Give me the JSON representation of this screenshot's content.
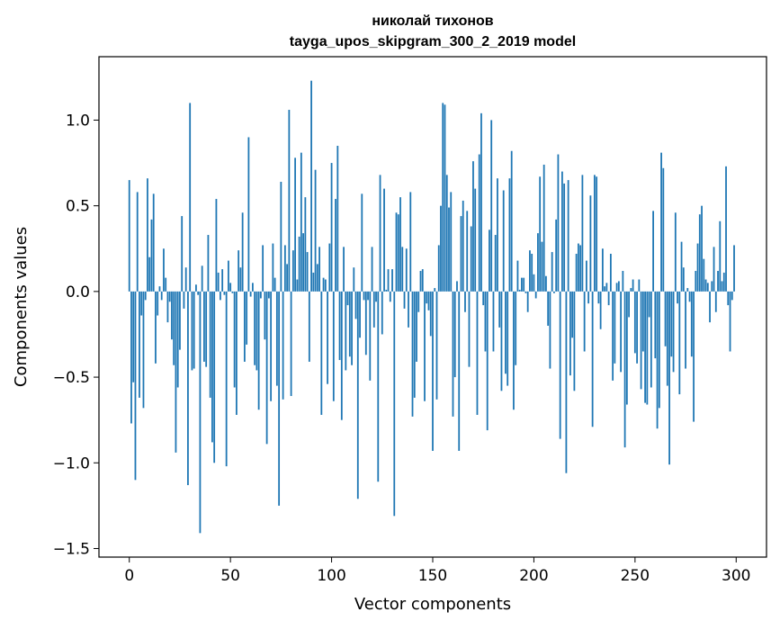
{
  "chart_data": {
    "type": "bar",
    "title": "николай тихонов",
    "subtitle": "tayga_upos_skipgram_300_2_2019 model",
    "xlabel": "Vector components",
    "ylabel": "Components values",
    "xlim": [
      -15,
      315
    ],
    "ylim": [
      -1.55,
      1.37
    ],
    "xticks": [
      0,
      50,
      100,
      150,
      200,
      250,
      300
    ],
    "xtick_labels": [
      "0",
      "50",
      "100",
      "150",
      "200",
      "250",
      "300"
    ],
    "yticks": [
      -1.5,
      -1.0,
      -0.5,
      0.0,
      0.5,
      1.0
    ],
    "ytick_labels": [
      "−1.5",
      "−1.0",
      "−0.5",
      "0.0",
      "0.5",
      "1.0"
    ],
    "grid": false,
    "color": "#1f77b4",
    "values": [
      0.65,
      -0.77,
      -0.53,
      -1.1,
      0.58,
      -0.62,
      -0.14,
      -0.68,
      -0.05,
      0.66,
      0.2,
      0.42,
      0.57,
      -0.42,
      -0.14,
      0.03,
      -0.05,
      0.25,
      0.08,
      -0.18,
      -0.06,
      -0.28,
      -0.43,
      -0.94,
      -0.56,
      -0.34,
      0.44,
      -0.1,
      0.14,
      -1.13,
      1.1,
      -0.46,
      -0.45,
      0.04,
      -0.02,
      -1.41,
      0.15,
      -0.41,
      -0.44,
      0.33,
      -0.62,
      -0.88,
      -1.0,
      0.54,
      0.11,
      -0.05,
      0.13,
      -0.02,
      -1.02,
      0.18,
      0.05,
      -0.01,
      -0.56,
      -0.72,
      0.24,
      0.14,
      0.46,
      -0.41,
      -0.31,
      0.9,
      -0.03,
      0.05,
      -0.43,
      -0.46,
      -0.69,
      -0.04,
      0.27,
      -0.28,
      -0.89,
      -0.04,
      -0.64,
      0.28,
      0.08,
      -0.55,
      -1.25,
      0.64,
      -0.63,
      0.27,
      0.16,
      1.06,
      -0.61,
      0.24,
      0.78,
      0.07,
      0.32,
      0.81,
      0.34,
      0.55,
      0.23,
      -0.41,
      1.23,
      0.11,
      0.71,
      0.16,
      0.26,
      -0.72,
      0.08,
      0.07,
      -0.54,
      0.28,
      0.75,
      -0.64,
      0.54,
      0.85,
      -0.4,
      -0.75,
      0.26,
      -0.46,
      -0.08,
      -0.38,
      -0.43,
      0.14,
      -0.16,
      -1.21,
      -0.27,
      0.57,
      -0.05,
      -0.37,
      -0.05,
      -0.52,
      0.26,
      -0.21,
      -0.06,
      -1.11,
      0.68,
      -0.25,
      0.6,
      0.01,
      0.13,
      -0.06,
      0.13,
      -1.31,
      0.46,
      0.45,
      0.55,
      0.26,
      -0.1,
      0.25,
      -0.21,
      0.58,
      -0.73,
      -0.62,
      -0.41,
      -0.12,
      0.12,
      0.13,
      -0.64,
      -0.07,
      -0.11,
      -0.26,
      -0.93,
      0.02,
      -0.63,
      0.27,
      0.5,
      1.1,
      1.09,
      0.68,
      0.49,
      0.58,
      -0.73,
      -0.5,
      0.06,
      -0.93,
      0.44,
      0.53,
      -0.12,
      0.47,
      -0.44,
      0.38,
      0.76,
      0.6,
      -0.72,
      0.8,
      1.04,
      -0.08,
      -0.35,
      -0.81,
      0.36,
      1.0,
      -0.35,
      0.33,
      0.66,
      -0.21,
      -0.58,
      0.59,
      -0.48,
      -0.55,
      0.66,
      0.82,
      -0.69,
      -0.43,
      0.18,
      0.01,
      0.08,
      0.08,
      -0.01,
      -0.12,
      0.24,
      0.22,
      0.1,
      -0.04,
      0.34,
      0.67,
      0.29,
      0.74,
      0.09,
      -0.2,
      -0.45,
      0.23,
      -0.01,
      0.42,
      0.8,
      -0.86,
      0.7,
      0.63,
      -1.06,
      0.65,
      -0.49,
      -0.27,
      -0.58,
      0.22,
      0.28,
      0.27,
      0.68,
      -0.35,
      0.18,
      -0.07,
      0.56,
      -0.79,
      0.68,
      0.67,
      -0.07,
      -0.22,
      0.25,
      0.03,
      0.05,
      -0.08,
      0.22,
      -0.52,
      -0.42,
      0.05,
      0.06,
      -0.47,
      0.12,
      -0.91,
      -0.66,
      -0.15,
      0.02,
      0.07,
      -0.36,
      -0.42,
      0.07,
      -0.57,
      -0.35,
      -0.65,
      -0.66,
      -0.15,
      -0.56,
      0.47,
      -0.39,
      -0.8,
      -0.68,
      0.81,
      0.72,
      -0.32,
      -0.55,
      -1.01,
      -0.38,
      -0.47,
      0.46,
      -0.07,
      -0.6,
      0.29,
      0.14,
      -0.45,
      0.02,
      -0.06,
      -0.38,
      -0.76,
      0.12,
      0.28,
      0.45,
      0.5,
      0.19,
      0.07,
      0.05,
      -0.18,
      0.06,
      0.26,
      -0.12,
      0.12,
      0.41,
      0.06,
      0.11,
      0.73,
      -0.08,
      -0.35,
      -0.05,
      0.27
    ]
  }
}
